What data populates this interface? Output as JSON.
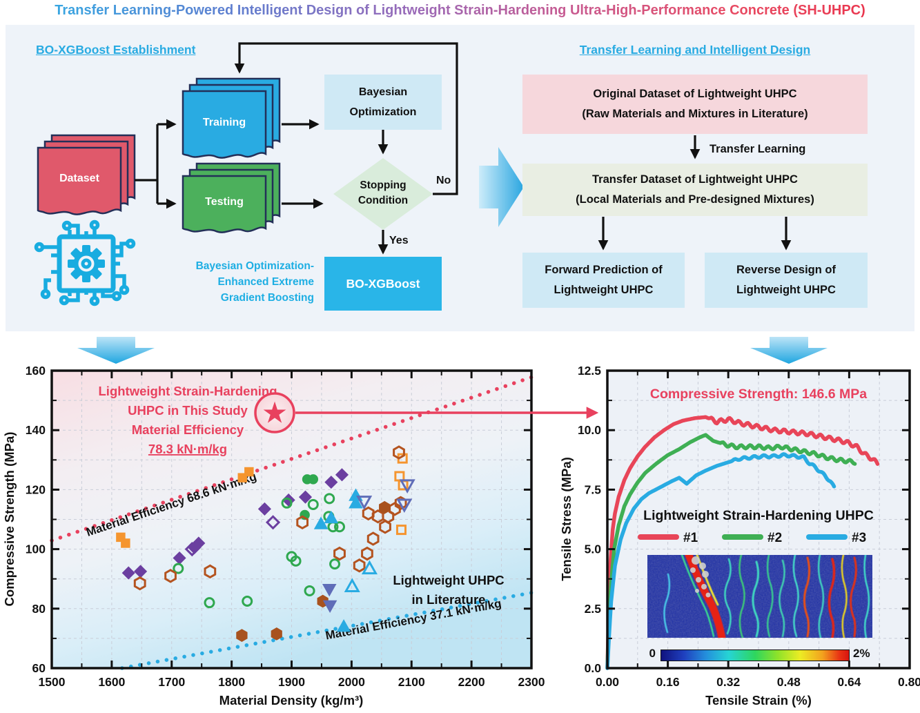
{
  "title": "Transfer Learning-Powered Intelligent Design of Lightweight Strain-Hardening Ultra-High-Performance Concrete (SH-UHPC)",
  "colors": {
    "accent_blue": "#29abe2",
    "crimson": "#e8415e",
    "dataset_red": "#e0596b",
    "training_blue": "#29abe2",
    "testing_green": "#4cb05c",
    "light_blue_box": "#cfe9f5",
    "pink_box": "#f6d7dc",
    "green_box": "#e9eee3",
    "diamond_green": "#d9ecdb",
    "result_blue": "#29b5e8"
  },
  "panel": {
    "left": {
      "heading": "BO-XGBoost Establishment",
      "dataset": "Dataset",
      "training": "Training",
      "testing": "Testing",
      "bayesian_box": "Bayesian\nOptimization",
      "stopping_diamond": "Stopping\nCondition",
      "no_label": "No",
      "yes_label": "Yes",
      "result_box": "BO-XGBoost",
      "caption": "Bayesian Optimization-\nEnhanced Extreme\nGradient Boosting",
      "chip_icon": "ai-chip-circuit-gear"
    },
    "right": {
      "heading": "Transfer Learning and Intelligent Design",
      "original_box": "Original Dataset of Lightweight UHPC\n(Raw Materials and Mixtures in Literature)",
      "transfer_arrow_label": "Transfer Learning",
      "transfer_box": "Transfer Dataset of Lightweight UHPC\n(Local Materials and Pre-designed Mixtures)",
      "forward_box": "Forward Prediction of\nLightweight UHPC",
      "reverse_box": "Reverse Design of\nLightweight UHPC"
    }
  },
  "chart_data": [
    {
      "type": "scatter",
      "xlabel": "Material Density (kg/m³)",
      "ylabel": "Compressive Strength (MPa)",
      "xlim": [
        1500,
        2300
      ],
      "ylim": [
        60,
        160
      ],
      "xticks": [
        1500,
        1600,
        1700,
        1800,
        1900,
        2000,
        2100,
        2200,
        2300
      ],
      "yticks": [
        60,
        80,
        100,
        120,
        140,
        160
      ],
      "grid": true,
      "annotations": {
        "study_lines": [
          "Lightweight Strain-Hardening",
          "UHPC in This Study",
          "Material Efficiency",
          "78.3 kN·m/kg"
        ],
        "study_color": "#e8415e",
        "literature_lines": [
          "Lightweight UHPC",
          "in Literature"
        ],
        "literature_color": "#111111"
      },
      "efficiency_lines": [
        {
          "label": "Material Efficiency 68.6 kN·m/kg",
          "slope_mpa_per_kg_m3": 0.0686,
          "style": "dotted",
          "color": "#e8415e"
        },
        {
          "label": "Material Efficiency 37.1 kN·m/kg",
          "slope_mpa_per_kg_m3": 0.0371,
          "style": "dotted",
          "color": "#29abe2"
        }
      ],
      "star_point": {
        "x": 1872,
        "y": 146.6,
        "marker": "star-in-circle",
        "color": "#e8415e"
      },
      "series": [
        {
          "name": "orange-squares-filled",
          "marker": "square",
          "filled": true,
          "color": "#f5952f",
          "points": [
            [
              1615,
              104
            ],
            [
              1623,
              102
            ],
            [
              1818,
              124
            ],
            [
              1829,
              126
            ]
          ]
        },
        {
          "name": "orange-squares-open",
          "marker": "square",
          "filled": false,
          "color": "#f5952f",
          "points": [
            [
              2085,
              130.5
            ],
            [
              2080,
              124.5
            ],
            [
              2086,
              121.5
            ],
            [
              2083,
              106.5
            ]
          ]
        },
        {
          "name": "purple-diamonds-filled",
          "marker": "diamond",
          "filled": true,
          "color": "#6b3fa0",
          "points": [
            [
              1628,
              92
            ],
            [
              1648,
              92.5
            ],
            [
              1713,
              97
            ],
            [
              1738,
              100.5
            ],
            [
              1745,
              102
            ],
            [
              1855,
              113.5
            ],
            [
              1895,
              116.5
            ],
            [
              1923,
              117.5
            ],
            [
              1966,
              122.5
            ],
            [
              1984,
              125
            ]
          ]
        },
        {
          "name": "purple-diamonds-open",
          "marker": "diamond",
          "filled": false,
          "color": "#6b3fa0",
          "points": [
            [
              1734,
              100
            ],
            [
              1869,
              109
            ]
          ]
        },
        {
          "name": "green-circles-filled",
          "marker": "circle",
          "filled": true,
          "color": "#2fa84f",
          "points": [
            [
              1926,
              123.5
            ],
            [
              1936,
              123.5
            ],
            [
              1922,
              111.5
            ]
          ]
        },
        {
          "name": "green-circles-open",
          "marker": "circle",
          "filled": false,
          "color": "#2fa84f",
          "points": [
            [
              1711,
              93.5
            ],
            [
              1763,
              82
            ],
            [
              1826,
              82.5
            ],
            [
              1892,
              115.5
            ],
            [
              1936,
              115
            ],
            [
              1963,
              117
            ],
            [
              1962,
              111
            ],
            [
              1969,
              107.5
            ],
            [
              1980,
              107.5
            ],
            [
              1900,
              97.5
            ],
            [
              1907,
              96
            ],
            [
              1972,
              95
            ],
            [
              1930,
              86
            ]
          ]
        },
        {
          "name": "sienna-hexagons-open",
          "marker": "hexagon",
          "filled": false,
          "color": "#b4531f",
          "points": [
            [
              1647,
              88.5
            ],
            [
              1698,
              91
            ],
            [
              1764,
              92.5
            ],
            [
              1918,
              109
            ],
            [
              2028,
              112
            ],
            [
              2044,
              111
            ],
            [
              2061,
              111
            ],
            [
              2072,
              113.5
            ],
            [
              2056,
              107.5
            ],
            [
              2036,
              103.5
            ],
            [
              2079,
              132.5
            ],
            [
              2026,
              98.5
            ],
            [
              2013,
              94.5
            ],
            [
              1980,
              98.5
            ],
            [
              2082,
              115.5
            ]
          ]
        },
        {
          "name": "sienna-hexagons-filled",
          "marker": "hexagon",
          "filled": true,
          "color": "#a8521e",
          "points": [
            [
              1817,
              71
            ],
            [
              1875,
              71.5
            ],
            [
              1952,
              82.5
            ],
            [
              2055,
              114
            ]
          ]
        },
        {
          "name": "blue-triangles-up-filled",
          "marker": "triangle-up",
          "filled": true,
          "color": "#29abe2",
          "points": [
            [
              2007,
              118
            ],
            [
              2007,
              115.5
            ],
            [
              1966,
              110.5
            ],
            [
              1949,
              108.5
            ],
            [
              1987,
              74
            ]
          ]
        },
        {
          "name": "blue-triangles-up-open",
          "marker": "triangle-up",
          "filled": false,
          "color": "#29abe2",
          "points": [
            [
              2030,
              93.5
            ],
            [
              2001,
              87.5
            ]
          ]
        },
        {
          "name": "slate-triangles-down-open",
          "marker": "triangle-down",
          "filled": false,
          "color": "#5f6db8",
          "points": [
            [
              2021,
              116
            ],
            [
              2093,
              121.5
            ],
            [
              2088,
              115
            ]
          ]
        },
        {
          "name": "slate-triangles-down-filled",
          "marker": "triangle-down",
          "filled": true,
          "color": "#5f6db8",
          "points": [
            [
              1963,
              86.5
            ],
            [
              1964,
              81
            ]
          ]
        }
      ]
    },
    {
      "type": "line",
      "xlabel": "Tensile Strain (%)",
      "ylabel": "Tensile Stress (MPa)",
      "xlim": [
        0,
        0.8
      ],
      "ylim": [
        0,
        12.5
      ],
      "xtick_labels": [
        "0.00",
        "0.16",
        "0.32",
        "0.48",
        "0.64",
        "0.80"
      ],
      "ytick_labels": [
        "0.0",
        "2.5",
        "5.0",
        "7.5",
        "10.0",
        "12.5"
      ],
      "grid": true,
      "annotation": {
        "text": "Compressive Strength: 146.6 MPa",
        "color": "#e8415e"
      },
      "legend": {
        "title": "Lightweight Strain-Hardening UHPC",
        "entries": [
          {
            "label": "#1",
            "color": "#e84558"
          },
          {
            "label": "#2",
            "color": "#3faf54"
          },
          {
            "label": "#3",
            "color": "#29abe2"
          }
        ]
      },
      "colorbar": {
        "left_label": "0",
        "right_label": "2%",
        "colormap": "jet"
      },
      "inset": "dic-strain-map",
      "series": [
        {
          "name": "#1",
          "color": "#e84558",
          "wiggle": {
            "start": 0.27,
            "amp": 0.08,
            "period": 0.024
          },
          "points": [
            [
              0,
              0
            ],
            [
              0.004,
              2.6
            ],
            [
              0.008,
              4.4
            ],
            [
              0.014,
              5.8
            ],
            [
              0.02,
              6.5
            ],
            [
              0.03,
              7.2
            ],
            [
              0.045,
              7.9
            ],
            [
              0.06,
              8.4
            ],
            [
              0.08,
              8.9
            ],
            [
              0.1,
              9.3
            ],
            [
              0.125,
              9.7
            ],
            [
              0.15,
              10.0
            ],
            [
              0.175,
              10.25
            ],
            [
              0.2,
              10.4
            ],
            [
              0.23,
              10.5
            ],
            [
              0.26,
              10.55
            ],
            [
              0.29,
              10.35
            ],
            [
              0.32,
              10.45
            ],
            [
              0.35,
              10.3
            ],
            [
              0.38,
              10.2
            ],
            [
              0.41,
              10.1
            ],
            [
              0.44,
              10.0
            ],
            [
              0.47,
              9.95
            ],
            [
              0.5,
              9.9
            ],
            [
              0.53,
              9.85
            ],
            [
              0.56,
              9.75
            ],
            [
              0.59,
              9.65
            ],
            [
              0.62,
              9.55
            ],
            [
              0.64,
              9.45
            ],
            [
              0.66,
              9.3
            ],
            [
              0.68,
              9.0
            ],
            [
              0.7,
              8.8
            ],
            [
              0.715,
              8.6
            ]
          ]
        },
        {
          "name": "#2",
          "color": "#3faf54",
          "wiggle": {
            "start": 0.3,
            "amp": 0.07,
            "period": 0.024
          },
          "points": [
            [
              0,
              0
            ],
            [
              0.004,
              1.8
            ],
            [
              0.01,
              3.6
            ],
            [
              0.018,
              5.0
            ],
            [
              0.03,
              6.0
            ],
            [
              0.045,
              6.8
            ],
            [
              0.06,
              7.3
            ],
            [
              0.08,
              7.8
            ],
            [
              0.1,
              8.2
            ],
            [
              0.13,
              8.6
            ],
            [
              0.16,
              8.95
            ],
            [
              0.19,
              9.2
            ],
            [
              0.22,
              9.5
            ],
            [
              0.245,
              9.7
            ],
            [
              0.26,
              9.8
            ],
            [
              0.28,
              9.55
            ],
            [
              0.31,
              9.4
            ],
            [
              0.34,
              9.3
            ],
            [
              0.37,
              9.3
            ],
            [
              0.4,
              9.3
            ],
            [
              0.43,
              9.25
            ],
            [
              0.46,
              9.3
            ],
            [
              0.49,
              9.2
            ],
            [
              0.52,
              9.1
            ],
            [
              0.55,
              9.0
            ],
            [
              0.58,
              8.85
            ],
            [
              0.61,
              8.75
            ],
            [
              0.635,
              8.7
            ],
            [
              0.655,
              8.65
            ]
          ]
        },
        {
          "name": "#3",
          "color": "#29abe2",
          "wiggle": {
            "start": 0.33,
            "amp": 0.05,
            "period": 0.026
          },
          "points": [
            [
              0,
              0
            ],
            [
              0.004,
              1.2
            ],
            [
              0.01,
              2.8
            ],
            [
              0.02,
              4.3
            ],
            [
              0.035,
              5.4
            ],
            [
              0.05,
              6.1
            ],
            [
              0.07,
              6.7
            ],
            [
              0.09,
              7.1
            ],
            [
              0.11,
              7.35
            ],
            [
              0.14,
              7.6
            ],
            [
              0.17,
              7.85
            ],
            [
              0.19,
              8.0
            ],
            [
              0.21,
              7.75
            ],
            [
              0.235,
              8.1
            ],
            [
              0.26,
              8.3
            ],
            [
              0.29,
              8.5
            ],
            [
              0.32,
              8.65
            ],
            [
              0.35,
              8.8
            ],
            [
              0.38,
              8.85
            ],
            [
              0.41,
              8.9
            ],
            [
              0.44,
              8.9
            ],
            [
              0.47,
              8.95
            ],
            [
              0.5,
              8.9
            ],
            [
              0.52,
              8.85
            ],
            [
              0.535,
              8.6
            ],
            [
              0.55,
              8.45
            ],
            [
              0.56,
              8.3
            ],
            [
              0.575,
              8.1
            ],
            [
              0.59,
              7.85
            ],
            [
              0.6,
              7.6
            ]
          ]
        }
      ]
    }
  ]
}
